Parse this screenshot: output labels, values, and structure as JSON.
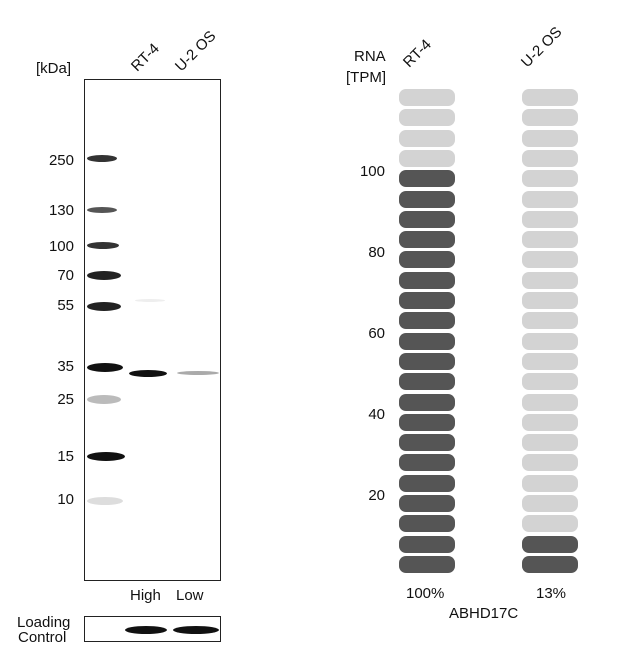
{
  "western_blot": {
    "kda_label": "[kDa]",
    "lanes": [
      "RT-4",
      "U-2 OS"
    ],
    "markers": [
      "250",
      "130",
      "100",
      "70",
      "55",
      "35",
      "25",
      "15",
      "10"
    ],
    "levels": [
      "High",
      "Low"
    ],
    "loading_control_line1": "Loading",
    "loading_control_line2": "Control"
  },
  "rna": {
    "title_line1": "RNA",
    "title_line2": "[TPM]",
    "cell_lines": [
      "RT-4",
      "U-2 OS"
    ],
    "axis_ticks": [
      "100",
      "80",
      "60",
      "40",
      "20"
    ],
    "percentages": [
      "100%",
      "13%"
    ],
    "gene": "ABHD17C",
    "columns": [
      {
        "name": "RT-4",
        "filled_segments": 20,
        "total_segments": 24
      },
      {
        "name": "U-2 OS",
        "filled_segments": 2,
        "total_segments": 24
      }
    ],
    "colors": {
      "filled": "#555555",
      "empty": "#d3d3d3"
    }
  }
}
